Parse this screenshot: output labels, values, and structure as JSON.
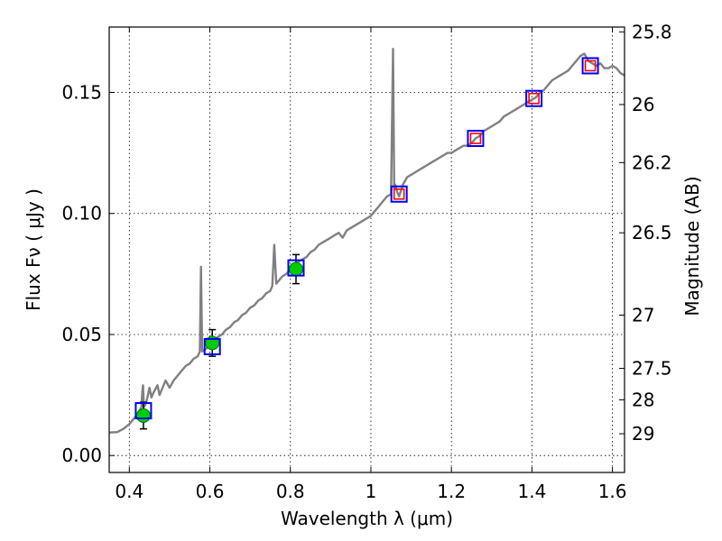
{
  "chart_data": {
    "type": "scatter",
    "title": "",
    "xlabel": "Wavelength  λ (μm)",
    "ylabel": "Flux  Fν  ( μJy )",
    "ylabel_right": "Magnitude (AB)",
    "xlim": [
      0.35,
      1.63
    ],
    "ylim": [
      -0.007,
      0.177
    ],
    "grid": true,
    "x_ticks": [
      {
        "value": 0.4,
        "label": "0.4"
      },
      {
        "value": 0.6,
        "label": "0.6"
      },
      {
        "value": 0.8,
        "label": "0.8"
      },
      {
        "value": 1.0,
        "label": "1"
      },
      {
        "value": 1.2,
        "label": "1.2"
      },
      {
        "value": 1.4,
        "label": "1.4"
      },
      {
        "value": 1.6,
        "label": "1.6"
      }
    ],
    "y_ticks": [
      {
        "value": 0.0,
        "label": "0.00"
      },
      {
        "value": 0.05,
        "label": "0.05"
      },
      {
        "value": 0.1,
        "label": "0.10"
      },
      {
        "value": 0.15,
        "label": "0.15"
      }
    ],
    "right_ticks": [
      {
        "label": "25.8",
        "flux": 0.175
      },
      {
        "label": "26",
        "flux": 0.145
      },
      {
        "label": "26.2",
        "flux": 0.121
      },
      {
        "label": "26.5",
        "flux": 0.092
      },
      {
        "label": "27",
        "flux": 0.058
      },
      {
        "label": "27.5",
        "flux": 0.036
      },
      {
        "label": "28",
        "flux": 0.023
      },
      {
        "label": "29",
        "flux": 0.009
      }
    ],
    "series": [
      {
        "style": "line",
        "color": "#808080",
        "points": [
          [
            0.35,
            0.0095
          ],
          [
            0.37,
            0.0097
          ],
          [
            0.385,
            0.011
          ],
          [
            0.4,
            0.013
          ],
          [
            0.41,
            0.015
          ],
          [
            0.42,
            0.017
          ],
          [
            0.43,
            0.02
          ],
          [
            0.432,
            0.026
          ],
          [
            0.434,
            0.029
          ],
          [
            0.436,
            0.02
          ],
          [
            0.44,
            0.021
          ],
          [
            0.445,
            0.024
          ],
          [
            0.45,
            0.028
          ],
          [
            0.455,
            0.024
          ],
          [
            0.46,
            0.026
          ],
          [
            0.47,
            0.029
          ],
          [
            0.475,
            0.025
          ],
          [
            0.48,
            0.027
          ],
          [
            0.49,
            0.031
          ],
          [
            0.5,
            0.028
          ],
          [
            0.51,
            0.031
          ],
          [
            0.52,
            0.033
          ],
          [
            0.53,
            0.035
          ],
          [
            0.54,
            0.037
          ],
          [
            0.55,
            0.038
          ],
          [
            0.56,
            0.04
          ],
          [
            0.57,
            0.041
          ],
          [
            0.575,
            0.043
          ],
          [
            0.578,
            0.078
          ],
          [
            0.581,
            0.043
          ],
          [
            0.59,
            0.044
          ],
          [
            0.6,
            0.046
          ],
          [
            0.61,
            0.047
          ],
          [
            0.62,
            0.049
          ],
          [
            0.63,
            0.05
          ],
          [
            0.64,
            0.052
          ],
          [
            0.65,
            0.053
          ],
          [
            0.66,
            0.055
          ],
          [
            0.67,
            0.056
          ],
          [
            0.68,
            0.058
          ],
          [
            0.69,
            0.059
          ],
          [
            0.7,
            0.061
          ],
          [
            0.71,
            0.062
          ],
          [
            0.72,
            0.064
          ],
          [
            0.73,
            0.065
          ],
          [
            0.74,
            0.067
          ],
          [
            0.75,
            0.068
          ],
          [
            0.755,
            0.07
          ],
          [
            0.76,
            0.087
          ],
          [
            0.765,
            0.071
          ],
          [
            0.77,
            0.072
          ],
          [
            0.78,
            0.074
          ],
          [
            0.79,
            0.075
          ],
          [
            0.8,
            0.077
          ],
          [
            0.81,
            0.078
          ],
          [
            0.82,
            0.08
          ],
          [
            0.83,
            0.081
          ],
          [
            0.84,
            0.082
          ],
          [
            0.85,
            0.084
          ],
          [
            0.86,
            0.085
          ],
          [
            0.87,
            0.087
          ],
          [
            0.88,
            0.088
          ],
          [
            0.89,
            0.089
          ],
          [
            0.9,
            0.09
          ],
          [
            0.91,
            0.091
          ],
          [
            0.92,
            0.092
          ],
          [
            0.93,
            0.09
          ],
          [
            0.94,
            0.093
          ],
          [
            0.95,
            0.094
          ],
          [
            0.96,
            0.095
          ],
          [
            0.97,
            0.096
          ],
          [
            0.98,
            0.097
          ],
          [
            0.99,
            0.098
          ],
          [
            1.0,
            0.099
          ],
          [
            1.01,
            0.101
          ],
          [
            1.02,
            0.103
          ],
          [
            1.03,
            0.105
          ],
          [
            1.04,
            0.107
          ],
          [
            1.05,
            0.108
          ],
          [
            1.055,
            0.168
          ],
          [
            1.058,
            0.11
          ],
          [
            1.06,
            0.112
          ],
          [
            1.065,
            0.109
          ],
          [
            1.07,
            0.107
          ],
          [
            1.08,
            0.112
          ],
          [
            1.09,
            0.115
          ],
          [
            1.1,
            0.116
          ],
          [
            1.11,
            0.117
          ],
          [
            1.12,
            0.118
          ],
          [
            1.13,
            0.119
          ],
          [
            1.14,
            0.12
          ],
          [
            1.15,
            0.121
          ],
          [
            1.16,
            0.122
          ],
          [
            1.17,
            0.123
          ],
          [
            1.18,
            0.124
          ],
          [
            1.19,
            0.125
          ],
          [
            1.2,
            0.125
          ],
          [
            1.21,
            0.126
          ],
          [
            1.22,
            0.127
          ],
          [
            1.23,
            0.128
          ],
          [
            1.24,
            0.128
          ],
          [
            1.25,
            0.129
          ],
          [
            1.26,
            0.131
          ],
          [
            1.27,
            0.132
          ],
          [
            1.28,
            0.134
          ],
          [
            1.29,
            0.135
          ],
          [
            1.3,
            0.136
          ],
          [
            1.31,
            0.137
          ],
          [
            1.32,
            0.138
          ],
          [
            1.33,
            0.14
          ],
          [
            1.34,
            0.141
          ],
          [
            1.35,
            0.142
          ],
          [
            1.36,
            0.143
          ],
          [
            1.37,
            0.144
          ],
          [
            1.38,
            0.145
          ],
          [
            1.39,
            0.146
          ],
          [
            1.4,
            0.147
          ],
          [
            1.41,
            0.148
          ],
          [
            1.42,
            0.15
          ],
          [
            1.43,
            0.151
          ],
          [
            1.44,
            0.153
          ],
          [
            1.45,
            0.155
          ],
          [
            1.46,
            0.156
          ],
          [
            1.47,
            0.157
          ],
          [
            1.48,
            0.158
          ],
          [
            1.49,
            0.159
          ],
          [
            1.5,
            0.161
          ],
          [
            1.51,
            0.163
          ],
          [
            1.52,
            0.165
          ],
          [
            1.53,
            0.166
          ],
          [
            1.54,
            0.163
          ],
          [
            1.55,
            0.162
          ],
          [
            1.56,
            0.161
          ],
          [
            1.57,
            0.162
          ],
          [
            1.58,
            0.16
          ],
          [
            1.59,
            0.16
          ],
          [
            1.6,
            0.161
          ],
          [
            1.61,
            0.16
          ],
          [
            1.62,
            0.158
          ],
          [
            1.63,
            0.157
          ]
        ]
      },
      {
        "style": "marker",
        "marker": "circle",
        "color": "#00cc00",
        "points": [
          {
            "x": 0.435,
            "y": 0.0165,
            "err": 0.0055
          },
          {
            "x": 0.606,
            "y": 0.0465,
            "err": 0.0055
          },
          {
            "x": 0.814,
            "y": 0.077,
            "err": 0.006
          }
        ]
      },
      {
        "style": "marker",
        "marker": "square",
        "color": "#0000ff",
        "points": [
          {
            "x": 0.435,
            "y": 0.0185
          },
          {
            "x": 0.606,
            "y": 0.045
          },
          {
            "x": 0.814,
            "y": 0.0775
          },
          {
            "x": 1.07,
            "y": 0.108
          },
          {
            "x": 1.26,
            "y": 0.131
          },
          {
            "x": 1.405,
            "y": 0.1475
          },
          {
            "x": 1.545,
            "y": 0.161
          }
        ]
      },
      {
        "style": "marker",
        "marker": "square",
        "color": "#ff0000",
        "points": [
          {
            "x": 1.07,
            "y": 0.108
          },
          {
            "x": 1.26,
            "y": 0.131
          },
          {
            "x": 1.405,
            "y": 0.1475
          },
          {
            "x": 1.545,
            "y": 0.161
          }
        ]
      }
    ]
  }
}
